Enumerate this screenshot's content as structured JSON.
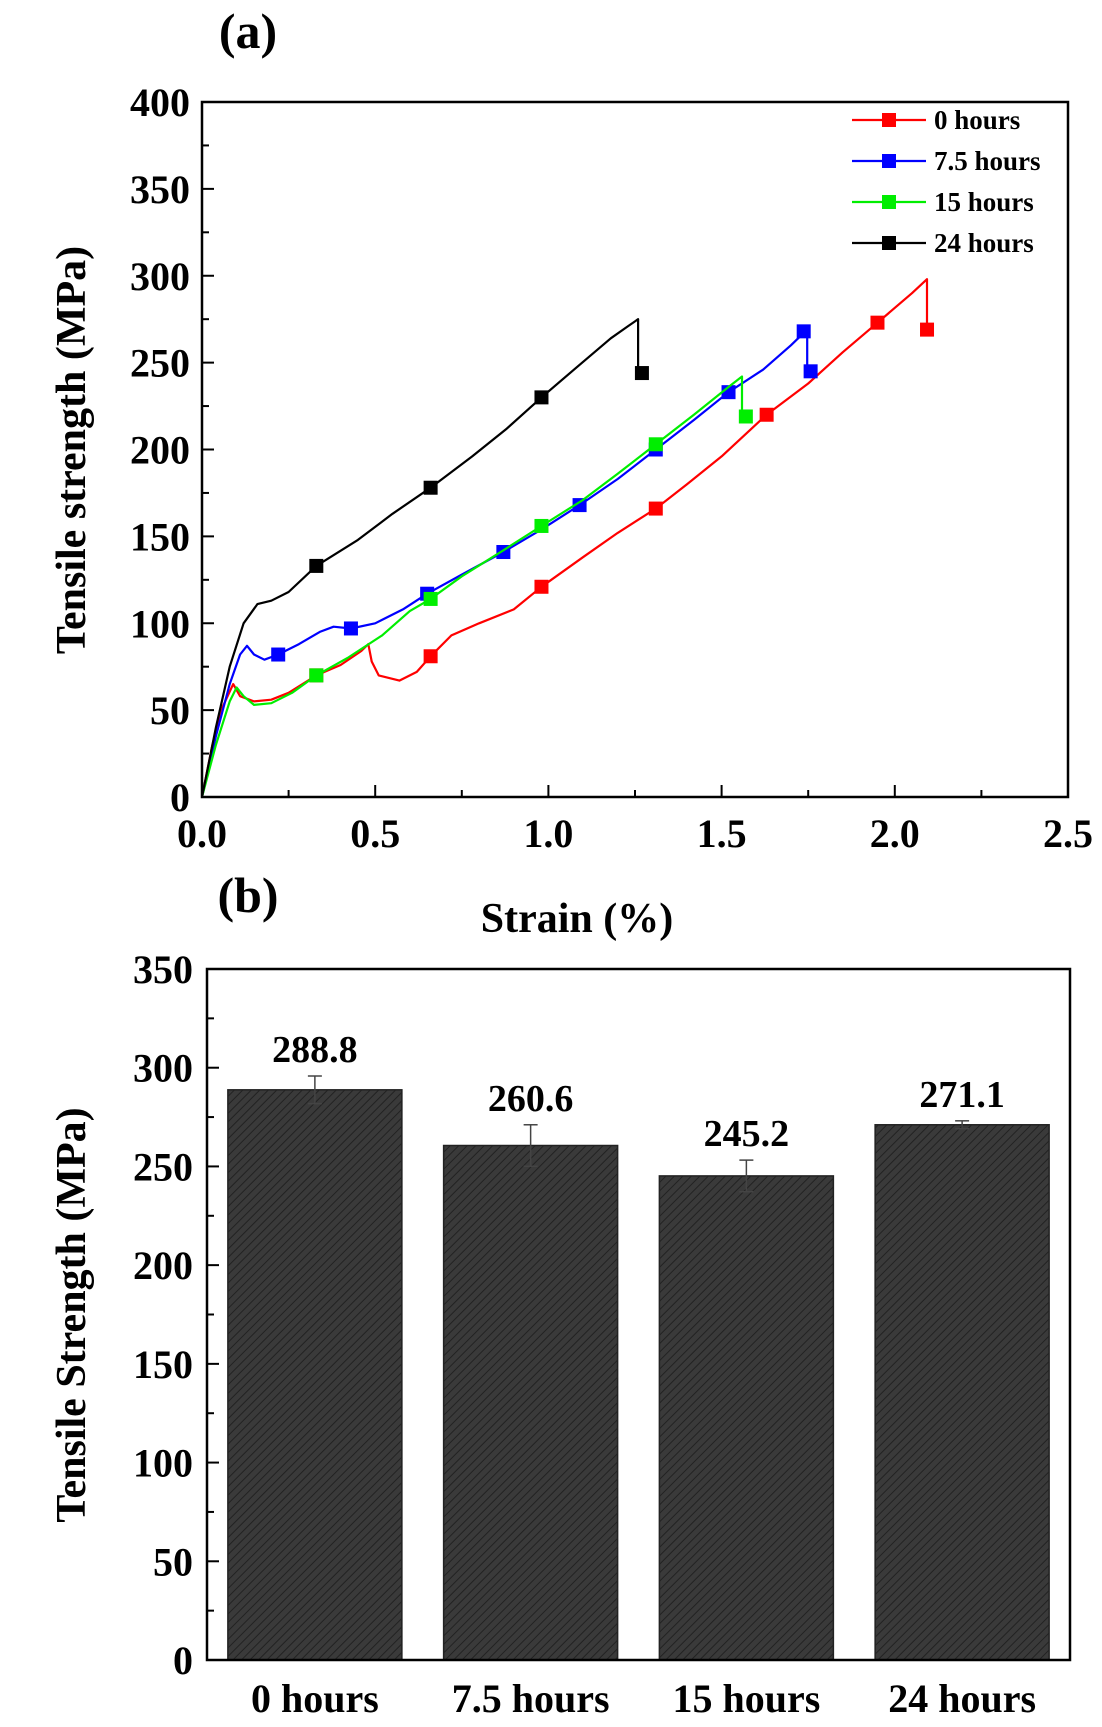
{
  "chart_data": [
    {
      "panel_label": "(a)",
      "type": "line",
      "xlabel": "Strain (%)",
      "ylabel": "Tensile strength (MPa)",
      "xlim": [
        0,
        2.5
      ],
      "ylim": [
        0,
        400
      ],
      "xticks": [
        "0.0",
        "0.5",
        "1.0",
        "1.5",
        "2.0",
        "2.5"
      ],
      "yticks": [
        "0",
        "50",
        "100",
        "150",
        "200",
        "250",
        "300",
        "350",
        "400"
      ],
      "legend_position": "top-right",
      "grid": false,
      "series": [
        {
          "name": "0 hours",
          "color": "#ff0000",
          "points": [
            [
              0,
              0
            ],
            [
              0.03,
              30
            ],
            [
              0.06,
              52
            ],
            [
              0.09,
              65
            ],
            [
              0.11,
              58
            ],
            [
              0.15,
              55
            ],
            [
              0.2,
              56
            ],
            [
              0.25,
              60
            ],
            [
              0.33,
              70
            ],
            [
              0.4,
              76
            ],
            [
              0.46,
              84
            ],
            [
              0.48,
              88
            ],
            [
              0.49,
              78
            ],
            [
              0.51,
              70
            ],
            [
              0.57,
              67
            ],
            [
              0.62,
              72
            ],
            [
              0.66,
              81
            ],
            [
              0.72,
              93
            ],
            [
              0.8,
              100
            ],
            [
              0.9,
              108
            ],
            [
              0.98,
              121
            ],
            [
              1.1,
              138
            ],
            [
              1.2,
              152
            ],
            [
              1.31,
              166
            ],
            [
              1.4,
              180
            ],
            [
              1.5,
              196
            ],
            [
              1.63,
              220
            ],
            [
              1.75,
              238
            ],
            [
              1.85,
              256
            ],
            [
              1.95,
              273
            ],
            [
              2.05,
              290
            ],
            [
              2.093,
              298
            ],
            [
              2.093,
              269
            ]
          ],
          "markers": [
            [
              0.33,
              70
            ],
            [
              0.66,
              81
            ],
            [
              0.98,
              121
            ],
            [
              1.31,
              166
            ],
            [
              1.63,
              220
            ],
            [
              1.95,
              273
            ],
            [
              2.093,
              269
            ]
          ]
        },
        {
          "name": "7.5 hours",
          "color": "#0000ff",
          "points": [
            [
              0,
              0
            ],
            [
              0.04,
              35
            ],
            [
              0.08,
              65
            ],
            [
              0.11,
              82
            ],
            [
              0.13,
              87
            ],
            [
              0.15,
              82
            ],
            [
              0.18,
              79
            ],
            [
              0.22,
              82
            ],
            [
              0.28,
              88
            ],
            [
              0.34,
              95
            ],
            [
              0.38,
              98
            ],
            [
              0.43,
              97
            ],
            [
              0.5,
              100
            ],
            [
              0.58,
              108
            ],
            [
              0.65,
              117
            ],
            [
              0.75,
              128
            ],
            [
              0.87,
              141
            ],
            [
              0.98,
              154
            ],
            [
              1.09,
              168
            ],
            [
              1.2,
              183
            ],
            [
              1.31,
              200
            ],
            [
              1.42,
              217
            ],
            [
              1.52,
              233
            ],
            [
              1.62,
              246
            ],
            [
              1.7,
              260
            ],
            [
              1.747,
              269
            ],
            [
              1.747,
              245
            ]
          ],
          "markers": [
            [
              0.22,
              82
            ],
            [
              0.43,
              97
            ],
            [
              0.65,
              117
            ],
            [
              0.87,
              141
            ],
            [
              1.09,
              168
            ],
            [
              1.31,
              200
            ],
            [
              1.52,
              233
            ],
            [
              1.737,
              268
            ],
            [
              1.757,
              245
            ]
          ]
        },
        {
          "name": "15 hours",
          "color": "#00ee00",
          "points": [
            [
              0,
              0
            ],
            [
              0.04,
              30
            ],
            [
              0.08,
              55
            ],
            [
              0.1,
              63
            ],
            [
              0.12,
              58
            ],
            [
              0.15,
              53
            ],
            [
              0.2,
              54
            ],
            [
              0.26,
              60
            ],
            [
              0.33,
              70
            ],
            [
              0.42,
              80
            ],
            [
              0.52,
              93
            ],
            [
              0.6,
              107
            ],
            [
              0.66,
              114
            ],
            [
              0.75,
              127
            ],
            [
              0.87,
              142
            ],
            [
              0.98,
              156
            ],
            [
              1.1,
              171
            ],
            [
              1.2,
              186
            ],
            [
              1.31,
              203
            ],
            [
              1.42,
              220
            ],
            [
              1.52,
              236
            ],
            [
              1.559,
              242
            ],
            [
              1.559,
              219
            ]
          ],
          "markers": [
            [
              0.33,
              70
            ],
            [
              0.66,
              114
            ],
            [
              0.98,
              156
            ],
            [
              1.31,
              203
            ],
            [
              1.57,
              219
            ]
          ]
        },
        {
          "name": "24 hours",
          "color": "#000000",
          "points": [
            [
              0,
              0
            ],
            [
              0.04,
              40
            ],
            [
              0.08,
              75
            ],
            [
              0.12,
              100
            ],
            [
              0.16,
              111
            ],
            [
              0.2,
              113
            ],
            [
              0.25,
              118
            ],
            [
              0.33,
              133
            ],
            [
              0.45,
              148
            ],
            [
              0.55,
              163
            ],
            [
              0.66,
              178
            ],
            [
              0.78,
              196
            ],
            [
              0.88,
              212
            ],
            [
              0.98,
              230
            ],
            [
              1.08,
              247
            ],
            [
              1.18,
              264
            ],
            [
              1.23,
              271
            ],
            [
              1.259,
              275
            ],
            [
              1.259,
              244
            ]
          ],
          "markers": [
            [
              0.33,
              133
            ],
            [
              0.66,
              178
            ],
            [
              0.98,
              230
            ],
            [
              1.27,
              244
            ]
          ]
        }
      ]
    },
    {
      "panel_label": "(b)",
      "type": "bar",
      "xlabel": "",
      "ylabel": "Tensile Strength (MPa)",
      "ylim": [
        0,
        350
      ],
      "yticks": [
        "0",
        "50",
        "100",
        "150",
        "200",
        "250",
        "300",
        "350"
      ],
      "categories": [
        "0 hours",
        "7.5 hours",
        "15 hours",
        "24 hours"
      ],
      "values": [
        288.8,
        260.6,
        245.2,
        271.1
      ],
      "value_labels": [
        "288.8",
        "260.6",
        "245.2",
        "271.1"
      ],
      "errors": [
        7,
        10.5,
        8,
        2
      ],
      "bar_color": "#333333",
      "bar_pattern": "diagonal-hatch",
      "grid": false
    }
  ]
}
